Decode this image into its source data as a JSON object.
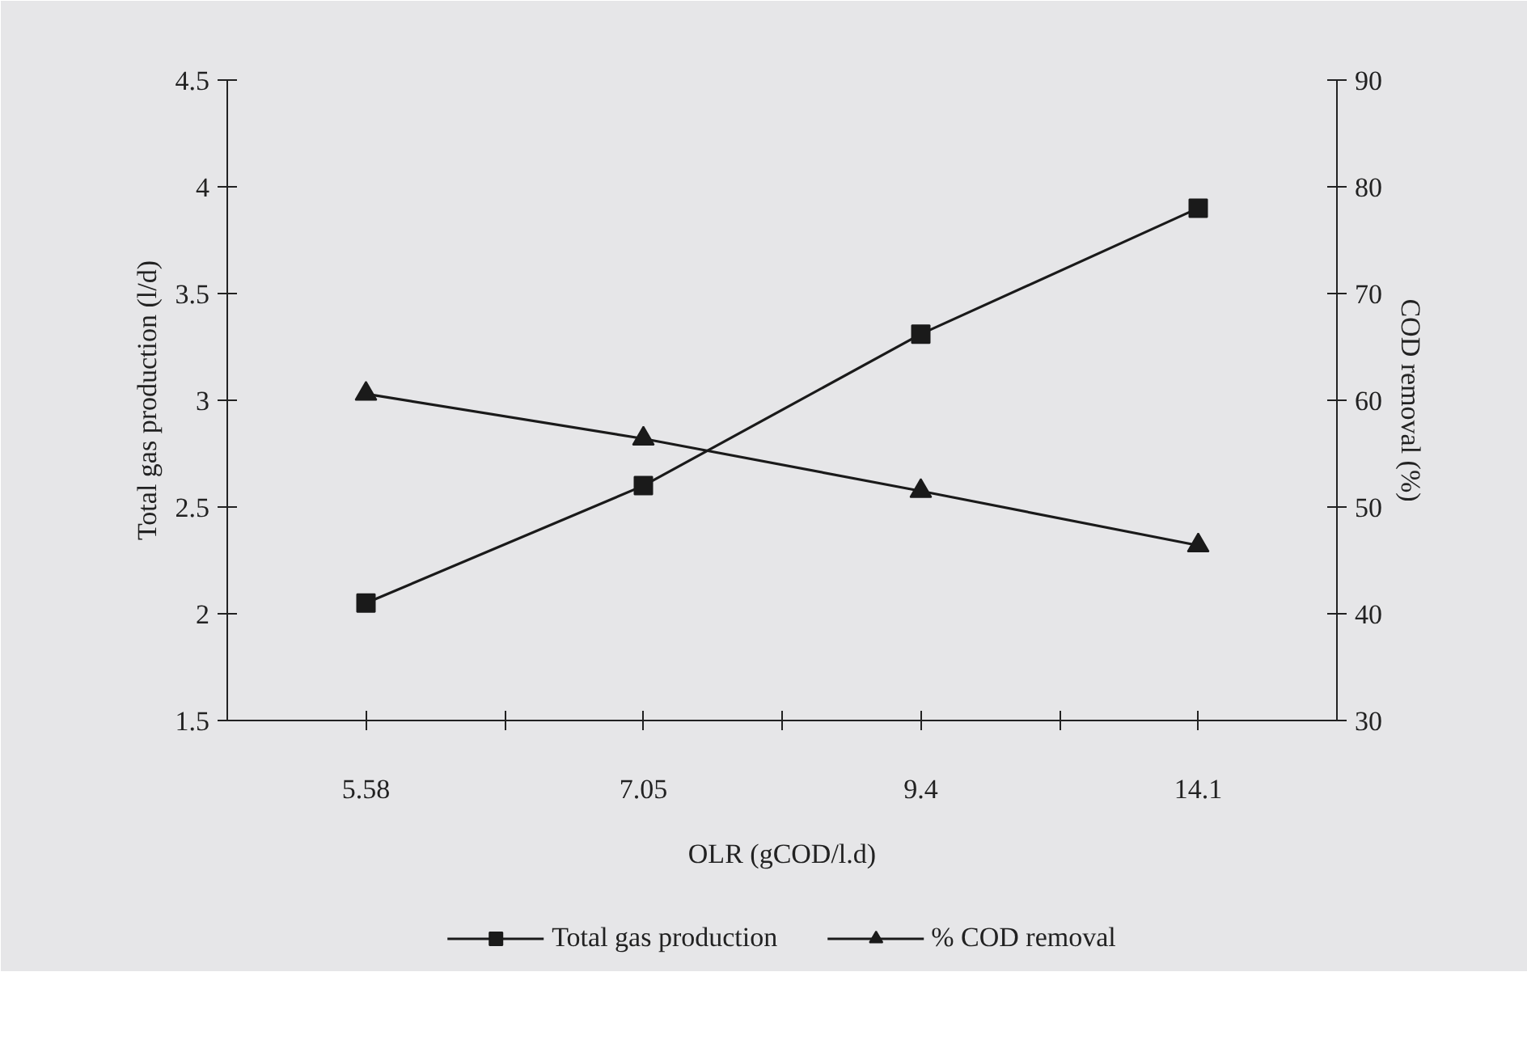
{
  "chart_data": {
    "type": "line",
    "xlabel": "OLR (gCOD/l.d)",
    "ylabel": "Total gas production (l/d)",
    "y2label": "COD removal (%)",
    "categories": [
      "5.58",
      "7.05",
      "9.4",
      "14.1"
    ],
    "series": [
      {
        "name": "Total gas production",
        "color": "#1a1a1a",
        "marker": "square",
        "values": [
          2.05,
          2.6,
          3.31,
          3.9
        ]
      },
      {
        "name": "% COD removal",
        "color": "#1a1a1a",
        "marker": "triangle",
        "axis": "y2",
        "values": [
          60.6,
          56.4,
          51.5,
          46.4
        ]
      }
    ],
    "ylim": [
      1.5,
      4.5
    ],
    "yticks": [
      1.5,
      2,
      2.5,
      3,
      3.5,
      4,
      4.5
    ],
    "y2lim": [
      30,
      90
    ],
    "y2ticks": [
      30,
      40,
      50,
      60,
      70,
      80,
      90
    ],
    "legend": "bottom",
    "line_style": "solid"
  }
}
